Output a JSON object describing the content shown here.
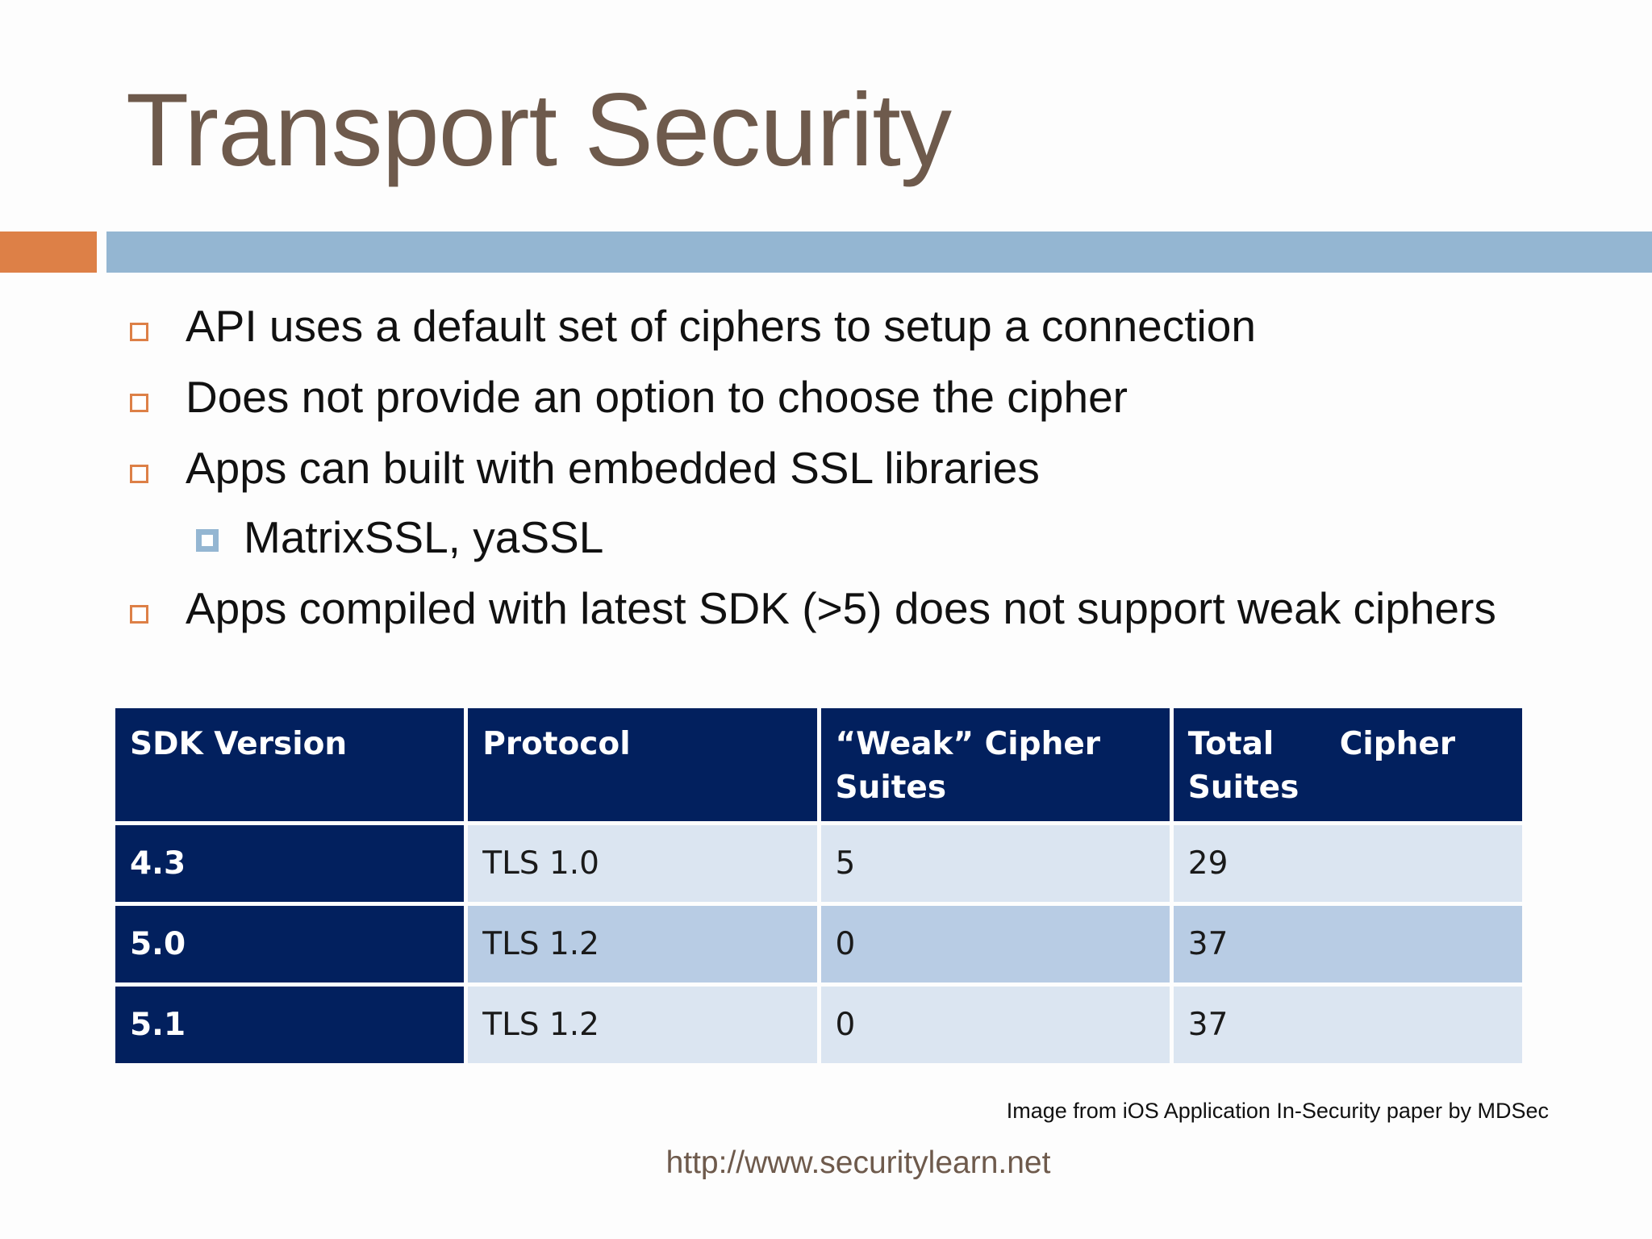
{
  "slide": {
    "title": "Transport Security",
    "bullets": [
      "API uses a default set of ciphers to setup a connection",
      "Does not provide an option to choose the cipher",
      "Apps can built with embedded SSL libraries",
      "MatrixSSL, yaSSL",
      "Apps compiled with latest SDK (>5) does not support weak ciphers"
    ],
    "table": {
      "headers": [
        "SDK Version",
        "Protocol",
        "“Weak” Cipher Suites",
        "Total      Cipher Suites"
      ],
      "rows": [
        [
          "4.3",
          "TLS 1.0",
          "5",
          "29"
        ],
        [
          "5.0",
          "TLS 1.2",
          "0",
          "37"
        ],
        [
          "5.1",
          "TLS 1.2",
          "0",
          "37"
        ]
      ]
    },
    "caption": "Image from iOS Application In-Security paper by MDSec",
    "footer_url": "http://www.securitylearn.net"
  },
  "colors": {
    "title": "#6e5a4c",
    "accent_orange": "#dd8047",
    "accent_blue": "#94b6d2",
    "table_header": "#02205e",
    "row_light": "#dbe5f1",
    "row_dark": "#b8cce4"
  },
  "icons": {
    "bullet_level1": "hollow-square-bullet-icon",
    "bullet_level2": "filled-square-bullet-icon"
  }
}
